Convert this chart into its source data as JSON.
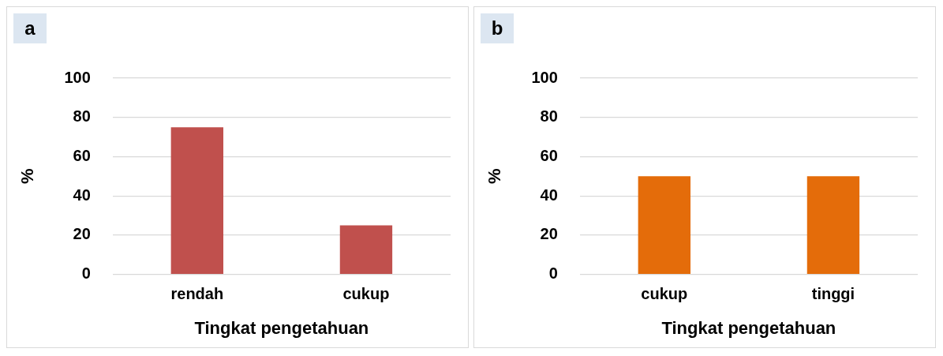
{
  "chart_data": [
    {
      "type": "bar",
      "title": "a",
      "categories": [
        "rendah",
        "cukup"
      ],
      "values": [
        75,
        25
      ],
      "color": "#c0504d",
      "xlabel": "Tingkat pengetahuan",
      "ylabel": "%",
      "ylim": [
        0,
        100
      ],
      "yticks": [
        0,
        20,
        40,
        60,
        80,
        100
      ],
      "grid": "y"
    },
    {
      "type": "bar",
      "title": "b",
      "categories": [
        "cukup",
        "tinggi"
      ],
      "values": [
        50,
        50
      ],
      "color": "#e46c0a",
      "xlabel": "Tingkat pengetahuan",
      "ylabel": "%",
      "ylim": [
        0,
        100
      ],
      "yticks": [
        0,
        20,
        40,
        60,
        80,
        100
      ],
      "grid": "y"
    }
  ]
}
